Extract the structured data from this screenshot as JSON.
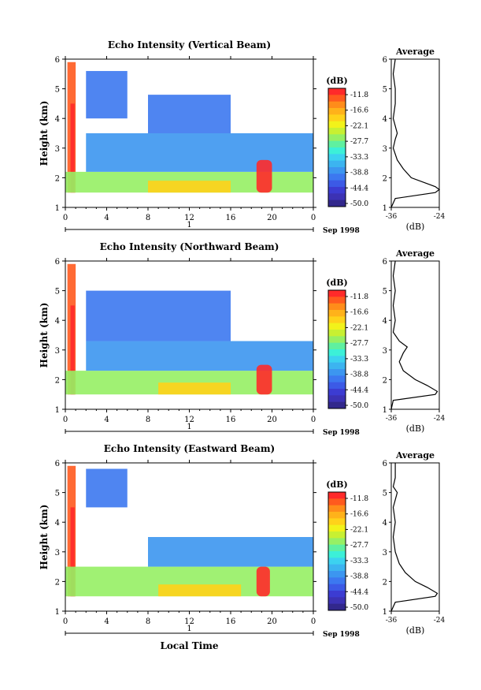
{
  "colorbar": {
    "unit_label": "(dB)",
    "ticks": [
      "-11.8",
      "-16.6",
      "-22.1",
      "-27.7",
      "-33.3",
      "-38.8",
      "-44.4",
      "-50.0"
    ],
    "colors": [
      "#ff2a2a",
      "#ff5a1e",
      "#ff8c1a",
      "#ffb21a",
      "#ffd21a",
      "#f2f21a",
      "#c8f032",
      "#96f064",
      "#5ff0a0",
      "#3cf0d8",
      "#3cd2f0",
      "#3cb4f0",
      "#3c96f0",
      "#3c78f0",
      "#3c5ae6",
      "#3c3cd2",
      "#3c32b4",
      "#32288c"
    ]
  },
  "x_axis": {
    "ticks": [
      "0",
      "4",
      "8",
      "12",
      "16",
      "20",
      "0"
    ],
    "day_label": "1",
    "date_label": "Sep 1998",
    "xlabel": "Local Time"
  },
  "avg_axis": {
    "ticks": [
      "-36",
      "-24"
    ],
    "xlabel": "(dB)",
    "title": "Average"
  },
  "chart_data": [
    {
      "type": "heatmap",
      "title": "Echo Intensity (Vertical Beam)",
      "ylabel": "Height (km)",
      "xlim": [
        0,
        24
      ],
      "ylim": [
        1,
        6
      ],
      "yticks": [
        "1",
        "2",
        "3",
        "4",
        "5",
        "6"
      ],
      "color_range_db": [
        -50.0,
        -11.8
      ],
      "regions": [
        {
          "x": [
            0.2,
            1.0
          ],
          "y": [
            1.5,
            5.9
          ],
          "db": -14
        },
        {
          "x": [
            0.5,
            0.9
          ],
          "y": [
            1.5,
            4.5
          ],
          "db": -11.8
        },
        {
          "x": [
            0,
            24
          ],
          "y": [
            1.5,
            2.2
          ],
          "db": -28
        },
        {
          "x": [
            2,
            24
          ],
          "y": [
            2.2,
            3.5
          ],
          "db": -38
        },
        {
          "x": [
            8,
            16
          ],
          "y": [
            3.5,
            4.8
          ],
          "db": -40
        },
        {
          "x": [
            2,
            6
          ],
          "y": [
            4.0,
            5.6
          ],
          "db": -40
        },
        {
          "x": [
            8,
            16
          ],
          "y": [
            1.5,
            1.9
          ],
          "db": -20
        },
        {
          "x": [
            18.5,
            20.0
          ],
          "y": [
            1.5,
            2.6
          ],
          "db": -11.8
        }
      ],
      "average_profile": {
        "height_km": [
          1.0,
          1.3,
          1.5,
          1.6,
          1.7,
          1.8,
          2.0,
          2.3,
          2.6,
          3.0,
          3.3,
          3.5,
          4.0,
          4.5,
          5.0,
          5.5,
          6.0
        ],
        "db": [
          -36,
          -35,
          -25,
          -24,
          -25,
          -27,
          -31,
          -33,
          -34.5,
          -35.5,
          -35,
          -34.5,
          -35.5,
          -35,
          -35,
          -35.5,
          -35
        ]
      }
    },
    {
      "type": "heatmap",
      "title": "Echo Intensity (Northward Beam)",
      "ylabel": "Height (km)",
      "xlim": [
        0,
        24
      ],
      "ylim": [
        1,
        6
      ],
      "yticks": [
        "1",
        "2",
        "3",
        "4",
        "5",
        "6"
      ],
      "color_range_db": [
        -50.0,
        -11.8
      ],
      "regions": [
        {
          "x": [
            0.2,
            1.0
          ],
          "y": [
            1.5,
            5.9
          ],
          "db": -14
        },
        {
          "x": [
            0.5,
            0.9
          ],
          "y": [
            1.5,
            4.5
          ],
          "db": -11.8
        },
        {
          "x": [
            0,
            24
          ],
          "y": [
            1.5,
            2.3
          ],
          "db": -28
        },
        {
          "x": [
            2,
            24
          ],
          "y": [
            2.3,
            3.3
          ],
          "db": -38
        },
        {
          "x": [
            2,
            16
          ],
          "y": [
            3.3,
            5.0
          ],
          "db": -40
        },
        {
          "x": [
            9,
            16
          ],
          "y": [
            1.5,
            1.9
          ],
          "db": -20
        },
        {
          "x": [
            18.5,
            20.0
          ],
          "y": [
            1.5,
            2.5
          ],
          "db": -11.8
        }
      ],
      "average_profile": {
        "height_km": [
          1.0,
          1.3,
          1.5,
          1.6,
          1.8,
          2.0,
          2.3,
          2.6,
          2.9,
          3.1,
          3.3,
          3.6,
          4.0,
          4.5,
          5.0,
          5.5,
          6.0
        ],
        "db": [
          -36,
          -35.5,
          -25,
          -24.5,
          -27,
          -30,
          -33,
          -34,
          -33,
          -32,
          -34,
          -35.5,
          -35,
          -35.5,
          -35,
          -35.5,
          -35
        ]
      }
    },
    {
      "type": "heatmap",
      "title": "Echo Intensity (Eastward Beam)",
      "ylabel": "Height (km)",
      "xlim": [
        0,
        24
      ],
      "ylim": [
        1,
        6
      ],
      "yticks": [
        "1",
        "2",
        "3",
        "4",
        "5",
        "6"
      ],
      "color_range_db": [
        -50.0,
        -11.8
      ],
      "regions": [
        {
          "x": [
            0.2,
            1.0
          ],
          "y": [
            1.5,
            5.9
          ],
          "db": -14
        },
        {
          "x": [
            0.5,
            0.9
          ],
          "y": [
            1.5,
            4.5
          ],
          "db": -11.8
        },
        {
          "x": [
            0,
            24
          ],
          "y": [
            1.5,
            2.5
          ],
          "db": -28
        },
        {
          "x": [
            8,
            24
          ],
          "y": [
            2.5,
            3.5
          ],
          "db": -38
        },
        {
          "x": [
            2,
            6
          ],
          "y": [
            4.5,
            5.8
          ],
          "db": -40
        },
        {
          "x": [
            9,
            17
          ],
          "y": [
            1.5,
            1.9
          ],
          "db": -20
        },
        {
          "x": [
            18.5,
            19.8
          ],
          "y": [
            1.5,
            2.5
          ],
          "db": -11.8
        }
      ],
      "average_profile": {
        "height_km": [
          1.0,
          1.3,
          1.5,
          1.6,
          1.8,
          2.0,
          2.3,
          2.6,
          3.0,
          3.5,
          4.0,
          4.5,
          5.0,
          5.2,
          5.5,
          6.0
        ],
        "db": [
          -36,
          -35,
          -25,
          -24.5,
          -27,
          -30,
          -32.5,
          -34,
          -35,
          -35.5,
          -35,
          -35.5,
          -34.5,
          -35.5,
          -35,
          -35
        ]
      }
    }
  ]
}
